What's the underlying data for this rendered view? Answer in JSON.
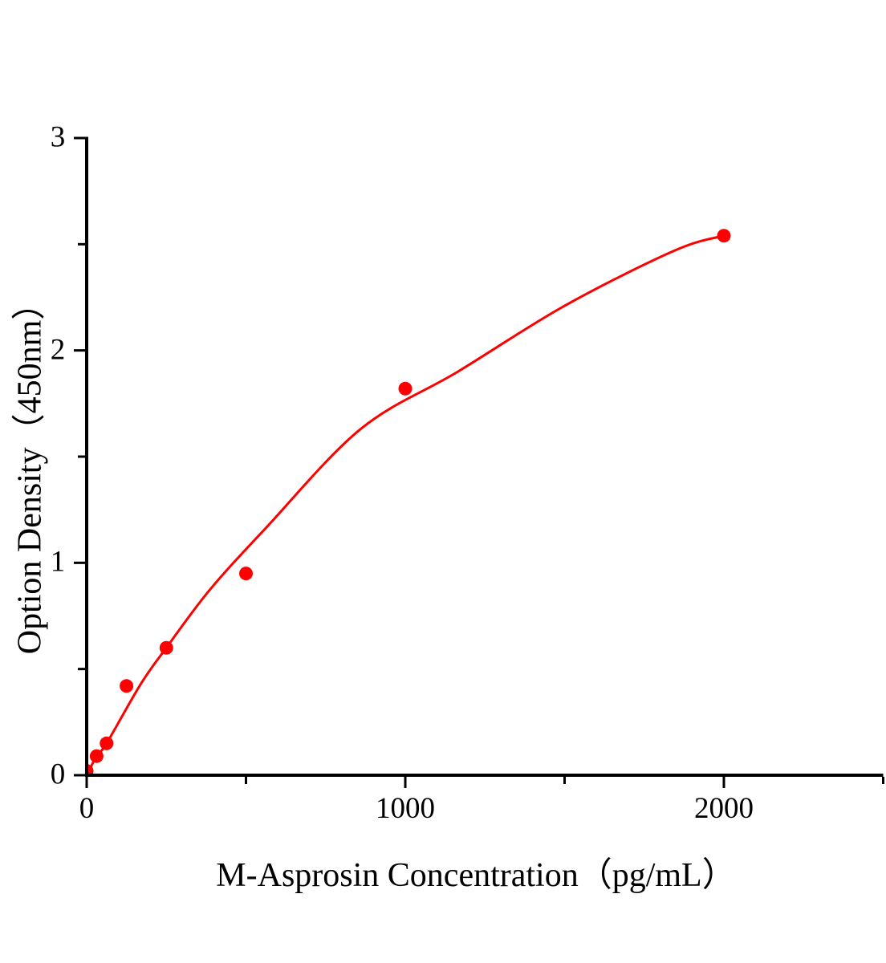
{
  "figure": {
    "background": "#ffffff"
  },
  "chart_data": {
    "type": "scatter",
    "title": "",
    "xlabel": "M-Asprosin Concentration（pg/mL）",
    "ylabel": "Option Density（450nm）",
    "xlim": [
      0,
      2500
    ],
    "ylim": [
      0,
      3
    ],
    "grid": false,
    "legend": null,
    "axis_color": "#000000",
    "accent_color": "#ff0000",
    "x_major_ticks": [
      {
        "value": 0,
        "label": "0"
      },
      {
        "value": 1000,
        "label": "1000"
      },
      {
        "value": 2000,
        "label": "2000"
      }
    ],
    "x_minor_ticks": [
      500,
      1500,
      2500
    ],
    "y_major_ticks": [
      {
        "value": 0,
        "label": "0"
      },
      {
        "value": 1,
        "label": "1"
      },
      {
        "value": 2,
        "label": "2"
      },
      {
        "value": 3,
        "label": "3"
      }
    ],
    "y_minor_ticks": [
      0.5,
      1.5,
      2.5
    ],
    "series": [
      {
        "name": "standard-points",
        "type": "scatter",
        "marker": "circle",
        "color": "#ff0000",
        "x": [
          0,
          31.25,
          62.5,
          125,
          250,
          500,
          1000,
          2000
        ],
        "y": [
          0.02,
          0.09,
          0.15,
          0.42,
          0.6,
          0.95,
          1.82,
          2.54
        ]
      },
      {
        "name": "fit-curve",
        "type": "line",
        "color": "#ff0000",
        "x": [
          0,
          31.25,
          62.5,
          170,
          250,
          385,
          560,
          860,
          1165,
          1500,
          1845,
          2000
        ],
        "y": [
          0.0,
          0.09,
          0.15,
          0.43,
          0.6,
          0.87,
          1.16,
          1.63,
          1.9,
          2.21,
          2.47,
          2.54
        ]
      }
    ]
  }
}
